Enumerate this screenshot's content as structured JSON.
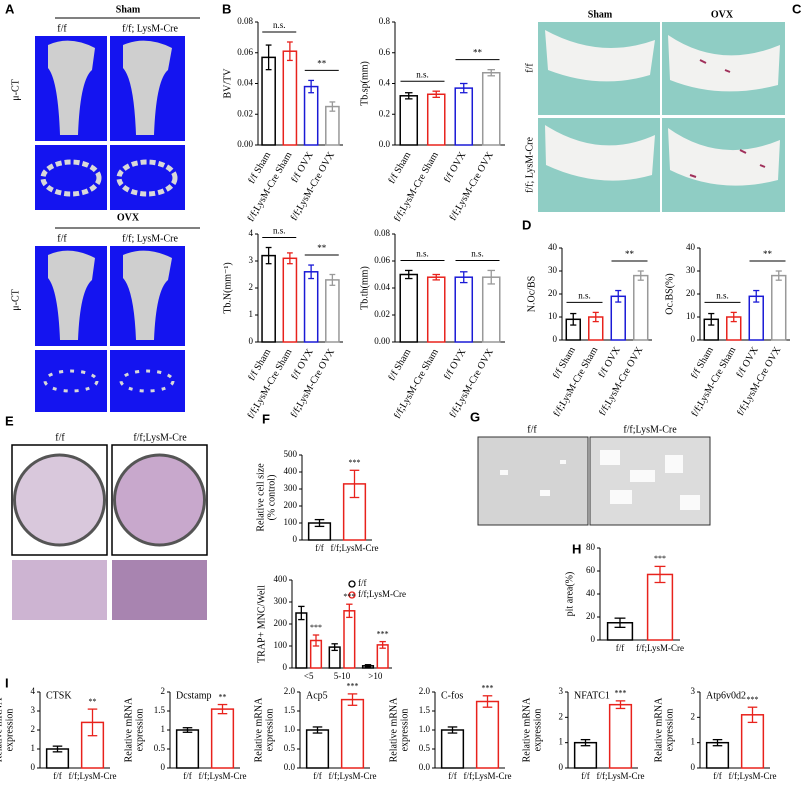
{
  "figure": {
    "letters": [
      "A",
      "B",
      "C",
      "D",
      "E",
      "F",
      "G",
      "H",
      "I"
    ],
    "A": {
      "sham": "Sham",
      "ovx": "OVX",
      "ff": "f/f",
      "cre": "f/f; LysM-Cre",
      "uct": "μ-CT"
    },
    "C": {
      "sham": "Sham",
      "ovx": "OVX",
      "ff": "f/f",
      "cre": "f/f; LysM-Cre"
    },
    "E": {
      "ff": "f/f",
      "cre": "f/f;LysM-Cre"
    },
    "G": {
      "ff": "f/f",
      "cre": "f/f;LysM-Cre"
    }
  },
  "chart_data": [
    {
      "type": "bar",
      "ylabel": "BV/TV",
      "categories": [
        "f/f Sham",
        "f/f;LysM-Cre Sham",
        "f/f OVX",
        "f/f;LysM-Cre OVX"
      ],
      "values": [
        0.057,
        0.061,
        0.038,
        0.025
      ],
      "errors": [
        0.008,
        0.006,
        0.004,
        0.003
      ],
      "colors": [
        "#000000",
        "#e8221c",
        "#1a1ad6",
        "#999999"
      ],
      "ylim": [
        0,
        0.08
      ],
      "yticks": [
        {
          "value": 0,
          "label": "0.00"
        },
        {
          "value": 0.02,
          "label": "0.02"
        },
        {
          "value": 0.04,
          "label": "0.04"
        },
        {
          "value": 0.06,
          "label": "0.06"
        },
        {
          "value": 0.08,
          "label": "0.08"
        }
      ],
      "annotations": [
        "n.s.",
        "**"
      ]
    },
    {
      "type": "bar",
      "ylabel": "Tb.sp(mm)",
      "categories": [
        "f/f Sham",
        "f/f;LysM-Cre Sham",
        "f/f OVX",
        "f/f;LysM-Cre OVX"
      ],
      "values": [
        0.32,
        0.33,
        0.37,
        0.47
      ],
      "errors": [
        0.02,
        0.02,
        0.03,
        0.02
      ],
      "colors": [
        "#000000",
        "#e8221c",
        "#1a1ad6",
        "#999999"
      ],
      "ylim": [
        0,
        0.8
      ],
      "yticks": [
        {
          "value": 0,
          "label": "0.0"
        },
        0.2,
        0.4,
        0.6,
        0.8
      ],
      "annotations": [
        "n.s.",
        "**"
      ]
    },
    {
      "type": "bar",
      "ylabel": "Tb.N(mm⁻¹)",
      "categories": [
        "f/f Sham",
        "f/f;LysM-Cre Sham",
        "f/f OVX",
        "f/f;LysM-Cre OVX"
      ],
      "values": [
        3.2,
        3.1,
        2.6,
        2.3
      ],
      "errors": [
        0.3,
        0.2,
        0.25,
        0.2
      ],
      "colors": [
        "#000000",
        "#e8221c",
        "#1a1ad6",
        "#999999"
      ],
      "ylim": [
        0,
        4
      ],
      "yticks": [
        0,
        1,
        2,
        3,
        4
      ],
      "annotations": [
        "n.s.",
        "**"
      ]
    },
    {
      "type": "bar",
      "ylabel": "Tb.th(mm)",
      "categories": [
        "f/f Sham",
        "f/f;LysM-Cre Sham",
        "f/f OVX",
        "f/f;LysM-Cre OVX"
      ],
      "values": [
        0.05,
        0.048,
        0.048,
        0.048
      ],
      "errors": [
        0.003,
        0.002,
        0.004,
        0.005
      ],
      "colors": [
        "#000000",
        "#e8221c",
        "#1a1ad6",
        "#999999"
      ],
      "ylim": [
        0,
        0.08
      ],
      "yticks": [
        {
          "value": 0,
          "label": "0.00"
        },
        {
          "value": 0.02,
          "label": "0.02"
        },
        {
          "value": 0.04,
          "label": "0.04"
        },
        {
          "value": 0.06,
          "label": "0.06"
        },
        {
          "value": 0.08,
          "label": "0.08"
        }
      ],
      "annotations": [
        "n.s.",
        "n.s."
      ]
    },
    {
      "type": "bar",
      "ylabel": "N.Oc/BS",
      "categories": [
        "f/f Sham",
        "f/f;LysM-Cre Sham",
        "f/f OVX",
        "f/f;LysM-Cre OVX"
      ],
      "values": [
        9,
        10,
        19,
        28
      ],
      "errors": [
        2.5,
        2,
        2.5,
        2
      ],
      "colors": [
        "#000000",
        "#e8221c",
        "#1a1ad6",
        "#999999"
      ],
      "ylim": [
        0,
        40
      ],
      "yticks": [
        0,
        10,
        20,
        30,
        40
      ],
      "annotations": [
        "n.s.",
        "**"
      ]
    },
    {
      "type": "bar",
      "ylabel": "Oc.BS(%)",
      "categories": [
        "f/f Sham",
        "f/f;LysM-Cre Sham",
        "f/f OVX",
        "f/f;LysM-Cre OVX"
      ],
      "values": [
        9,
        10,
        19,
        28
      ],
      "errors": [
        2.5,
        2,
        2.5,
        2
      ],
      "colors": [
        "#000000",
        "#e8221c",
        "#1a1ad6",
        "#999999"
      ],
      "ylim": [
        0,
        40
      ],
      "yticks": [
        0,
        10,
        20,
        30,
        40
      ],
      "annotations": [
        "n.s.",
        "**"
      ]
    },
    {
      "type": "bar",
      "ylabel": [
        "Relative cell size",
        "(% control)"
      ],
      "categories": [
        "f/f",
        "f/f;LysM-Cre"
      ],
      "values": [
        100,
        330
      ],
      "errors": [
        20,
        80
      ],
      "colors": [
        "#000000",
        "#e8221c"
      ],
      "ylim": [
        0,
        500
      ],
      "yticks": [
        0,
        100,
        200,
        300,
        400,
        500
      ],
      "annotations": [
        "***"
      ]
    },
    {
      "type": "grouped_bar",
      "ylabel": "TRAP+ MNC/Well",
      "categories": [
        "<5",
        "5-10",
        ">10"
      ],
      "series": [
        {
          "name": "f/f",
          "color": "#000000",
          "values": [
            250,
            95,
            10
          ],
          "errors": [
            30,
            15,
            5
          ]
        },
        {
          "name": "f/f;LysM-Cre",
          "color": "#e8221c",
          "values": [
            125,
            260,
            105
          ],
          "errors": [
            25,
            30,
            15
          ]
        }
      ],
      "ylim": [
        0,
        400
      ],
      "yticks": [
        0,
        100,
        200,
        300,
        400
      ],
      "annotations": [
        "***",
        "***",
        "***"
      ]
    },
    {
      "type": "bar",
      "ylabel": "pit area(%)",
      "categories": [
        "f/f",
        "f/f;LysM-Cre"
      ],
      "values": [
        15,
        57
      ],
      "errors": [
        4,
        7
      ],
      "colors": [
        "#000000",
        "#e8221c"
      ],
      "ylim": [
        0,
        80
      ],
      "yticks": [
        0,
        20,
        40,
        60,
        80
      ],
      "annotations": [
        "***"
      ]
    },
    {
      "type": "bar",
      "title": "CTSK",
      "ylabel": [
        "Relative mRNA",
        "expression"
      ],
      "categories": [
        "f/f",
        "f/f;LysM-Cre"
      ],
      "values": [
        1,
        2.4
      ],
      "errors": [
        0.15,
        0.7
      ],
      "colors": [
        "#000000",
        "#e8221c"
      ],
      "ylim": [
        0,
        4
      ],
      "yticks": [
        0,
        1,
        2,
        3,
        4
      ],
      "annotations": [
        "**"
      ]
    },
    {
      "type": "bar",
      "title": "Dcstamp",
      "ylabel": [
        "Relative mRNA",
        "expression"
      ],
      "categories": [
        "f/f",
        "f/f;LysM-Cre"
      ],
      "values": [
        1,
        1.55
      ],
      "errors": [
        0.06,
        0.12
      ],
      "colors": [
        "#000000",
        "#e8221c"
      ],
      "ylim": [
        0,
        2
      ],
      "yticks": [
        0,
        0.5,
        1,
        1.5,
        2
      ],
      "annotations": [
        "**"
      ]
    },
    {
      "type": "bar",
      "title": "Acp5",
      "ylabel": [
        "Relative mRNA",
        "expression"
      ],
      "categories": [
        "f/f",
        "f/f;LysM-Cre"
      ],
      "values": [
        1,
        1.8
      ],
      "errors": [
        0.08,
        0.15
      ],
      "colors": [
        "#000000",
        "#e8221c"
      ],
      "ylim": [
        0,
        2
      ],
      "yticks": [
        {
          "value": 0,
          "label": "0.0"
        },
        0.5,
        {
          "value": 1,
          "label": "1.0"
        },
        1.5,
        {
          "value": 2,
          "label": "2.0"
        }
      ],
      "annotations": [
        "***"
      ]
    },
    {
      "type": "bar",
      "title": "C-fos",
      "ylabel": [
        "Relative mRNA",
        "expression"
      ],
      "categories": [
        "f/f",
        "f/f;LysM-Cre"
      ],
      "values": [
        1,
        1.75
      ],
      "errors": [
        0.08,
        0.15
      ],
      "colors": [
        "#000000",
        "#e8221c"
      ],
      "ylim": [
        0,
        2
      ],
      "yticks": [
        {
          "value": 0,
          "label": "0.0"
        },
        0.5,
        {
          "value": 1,
          "label": "1.0"
        },
        1.5,
        {
          "value": 2,
          "label": "2.0"
        }
      ],
      "annotations": [
        "***"
      ]
    },
    {
      "type": "bar",
      "title": "NFATC1",
      "ylabel": [
        "Relative mRNA",
        "expression"
      ],
      "categories": [
        "f/f",
        "f/f;LysM-Cre"
      ],
      "values": [
        1,
        2.5
      ],
      "errors": [
        0.12,
        0.15
      ],
      "colors": [
        "#000000",
        "#e8221c"
      ],
      "ylim": [
        0,
        3
      ],
      "yticks": [
        0,
        1,
        2,
        3
      ],
      "annotations": [
        "***"
      ]
    },
    {
      "type": "bar",
      "title": "Atp6v0d2",
      "ylabel": [
        "Relative mRNA",
        "expression"
      ],
      "categories": [
        "f/f",
        "f/f;LysM-Cre"
      ],
      "values": [
        1,
        2.1
      ],
      "errors": [
        0.12,
        0.3
      ],
      "colors": [
        "#000000",
        "#e8221c"
      ],
      "ylim": [
        0,
        3
      ],
      "yticks": [
        0,
        1,
        2,
        3
      ],
      "annotations": [
        "***"
      ]
    }
  ]
}
